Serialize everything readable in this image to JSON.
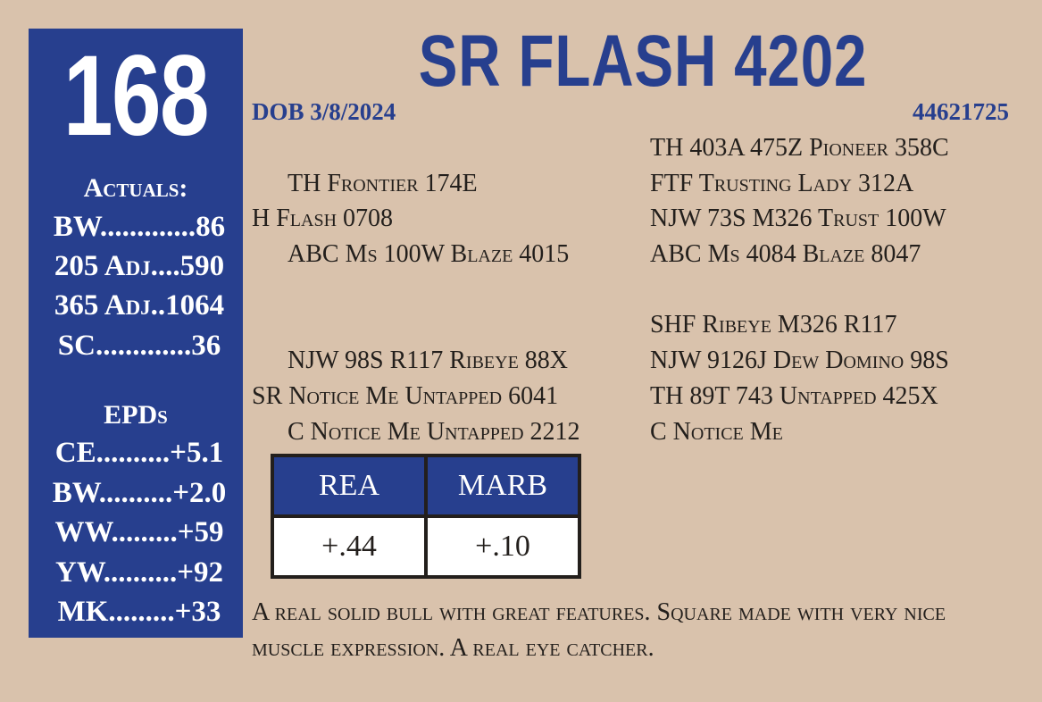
{
  "lot_number": "168",
  "title": "SR FLASH 4202",
  "dob": "DOB 3/8/2024",
  "registration": "44621725",
  "actuals": {
    "heading": "Actuals:",
    "rows": [
      "BW.............86",
      "205 Adj....590",
      "365 Adj..1064",
      "SC.............36"
    ]
  },
  "epds": {
    "heading": "EPDs",
    "rows": [
      "CE..........+5.1",
      "BW..........+2.0",
      "WW.........+59",
      "YW..........+92",
      "MK.........+33"
    ]
  },
  "pedigree": {
    "sire": {
      "sire": "TH Frontier 174E",
      "name": "H Flash 0708",
      "dam": "ABC Ms 100W Blaze 4015"
    },
    "dam": {
      "sire": "NJW 98S R117 Ribeye 88X",
      "name": "SR Notice Me Untapped 6041",
      "dam": "C Notice Me Untapped 2212"
    },
    "far": [
      "TH 403A 475Z Pioneer 358C",
      "FTF Trusting Lady 312A",
      "NJW 73S M326 Trust 100W",
      "ABC Ms 4084 Blaze 8047",
      "SHF Ribeye M326 R117",
      "NJW 9126J Dew Domino 98S",
      "TH 89T 743 Untapped 425X",
      "C Notice Me"
    ]
  },
  "carcass": {
    "headers": [
      "REA",
      "MARB"
    ],
    "values": [
      "+.44",
      "+.10"
    ]
  },
  "comments": "A real solid bull with great features. Square made with very nice muscle expression. A real eye catcher.",
  "colors": {
    "blue": "#273f8e",
    "background": "#d9c2ac"
  }
}
